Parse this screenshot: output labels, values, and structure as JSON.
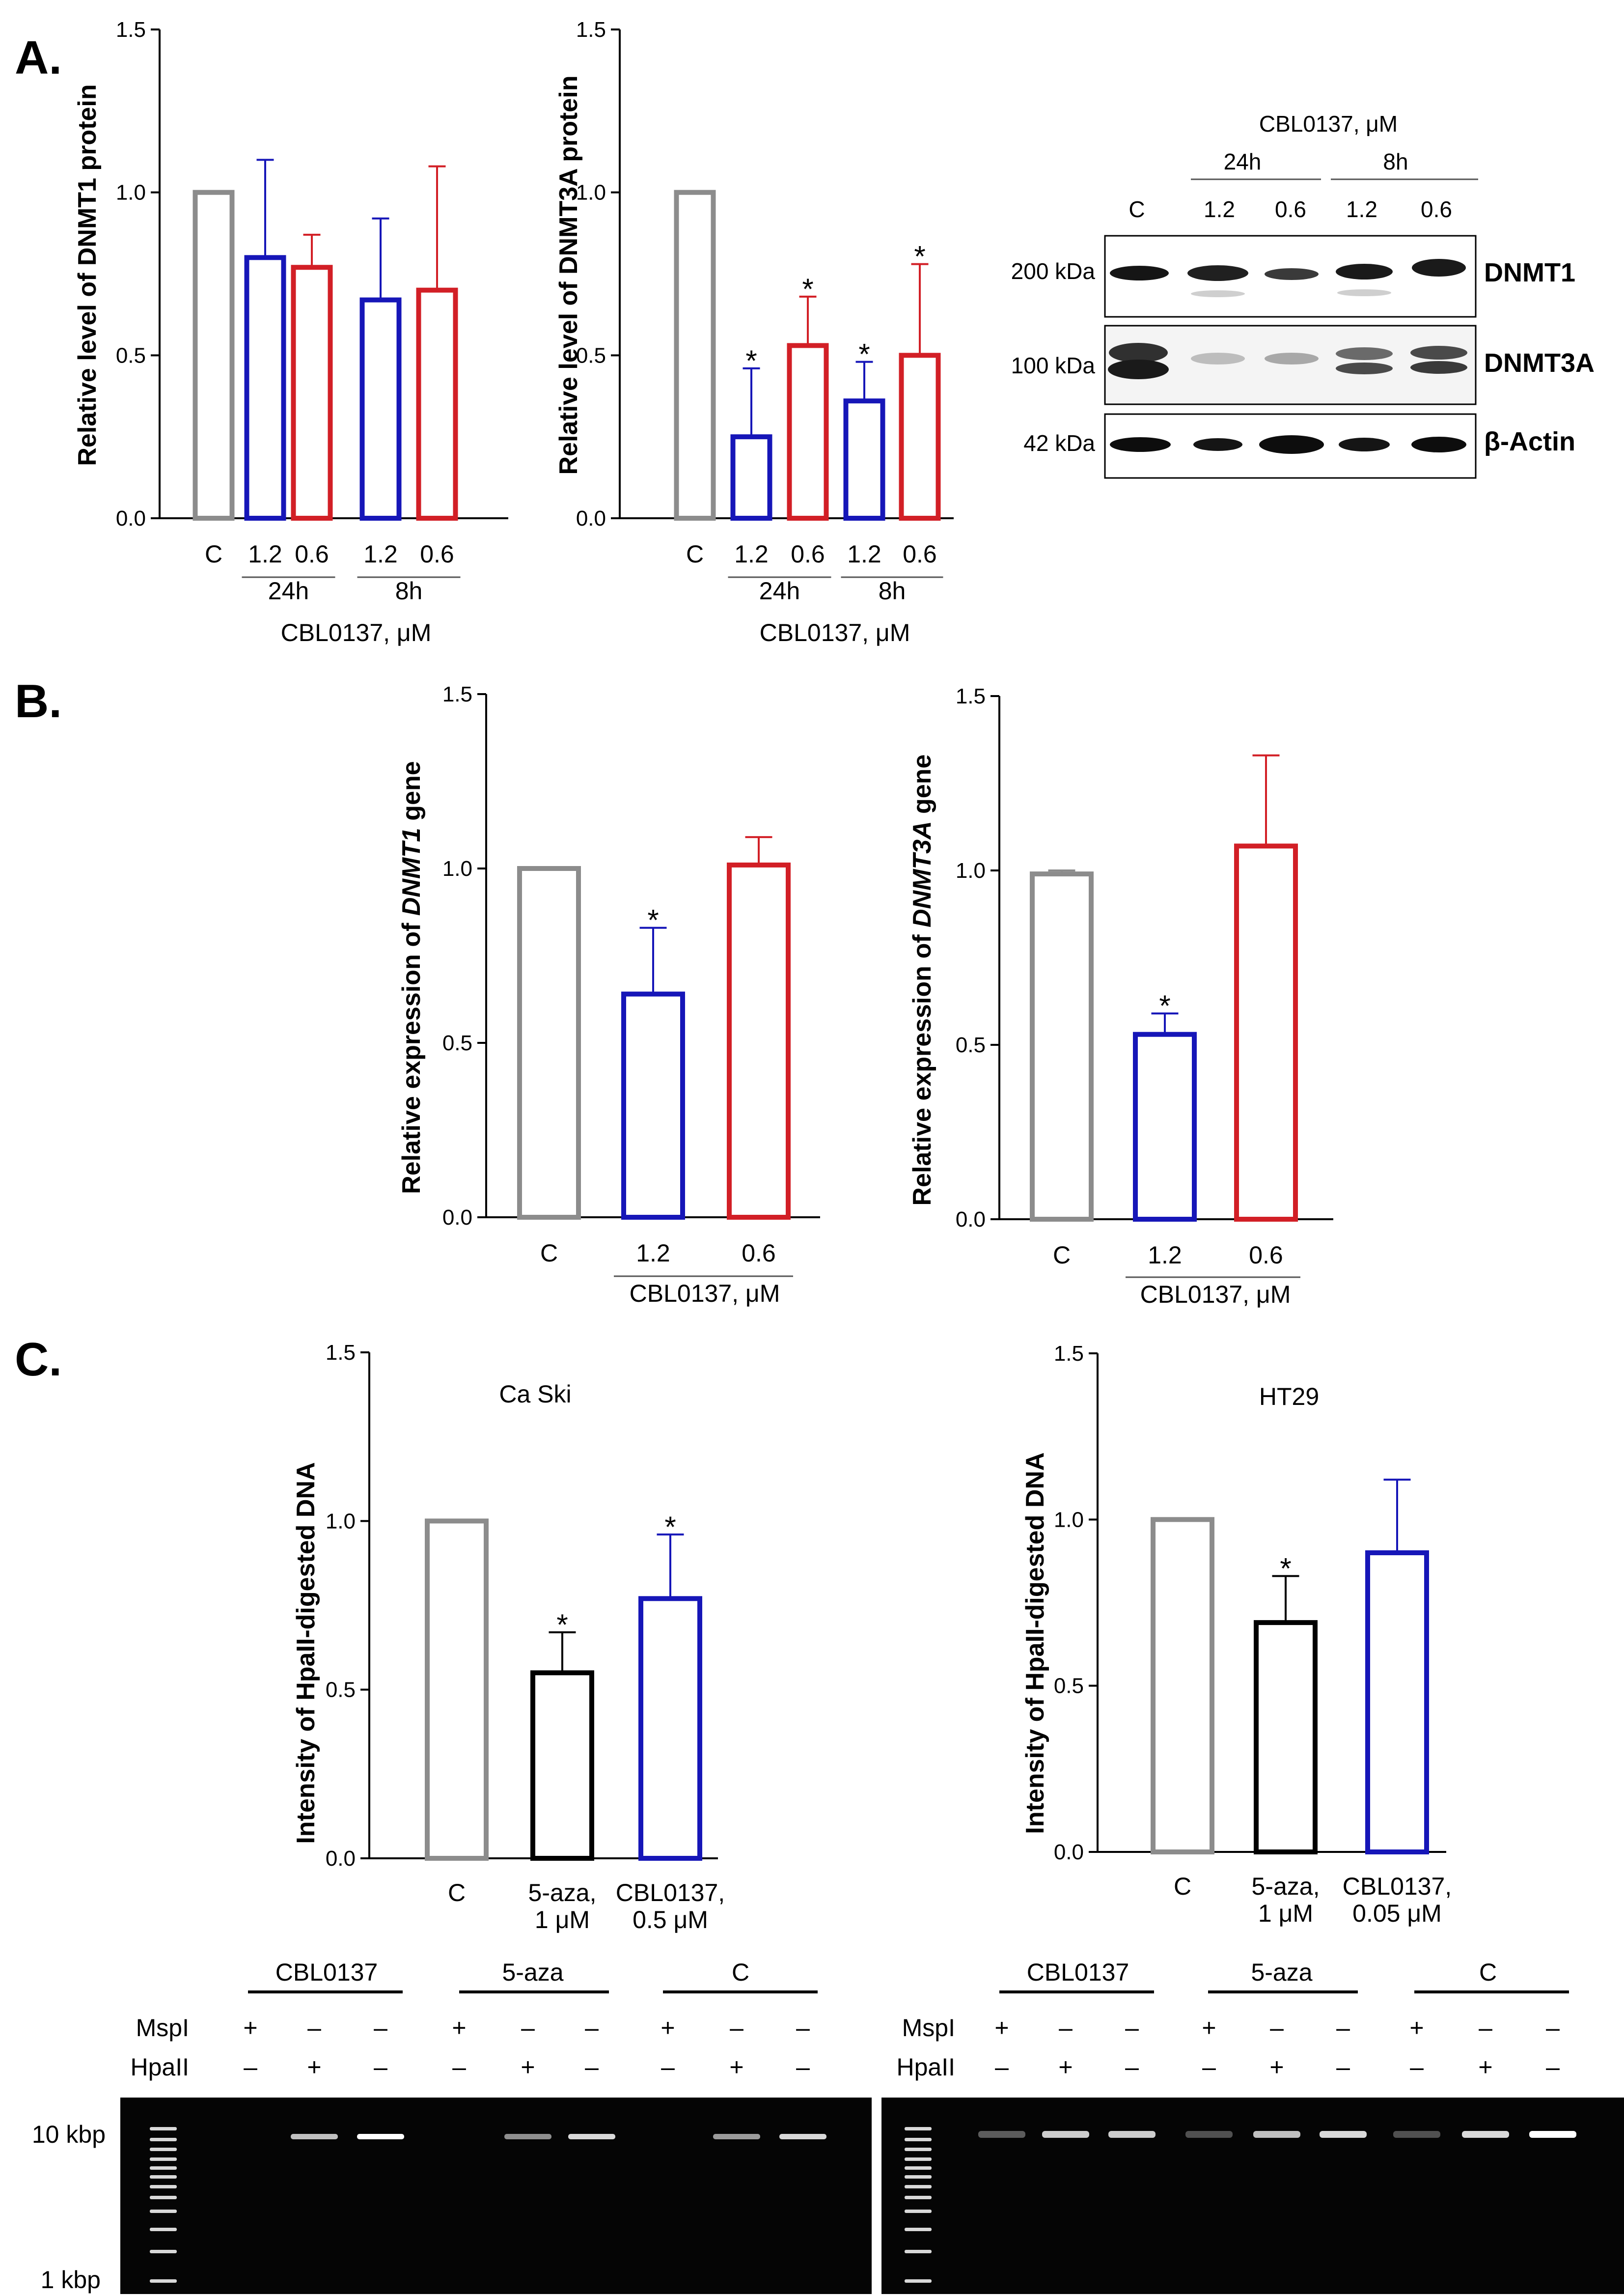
{
  "panels": {
    "a": "A.",
    "b": "B.",
    "c": "C."
  },
  "colors": {
    "control": "#8c8c8c",
    "blue": "#1616b8",
    "red": "#d21f26",
    "black": "#000000"
  },
  "chart_data": [
    {
      "id": "a1",
      "type": "bar",
      "ylabel": "Relative level of DNMT1 protein",
      "ylim": [
        0,
        1.5
      ],
      "yticks": [
        "0.0",
        "0.5",
        "1.0",
        "1.5"
      ],
      "categories": [
        "C",
        "1.2",
        "0.6",
        "1.2",
        "0.6"
      ],
      "values": [
        1.0,
        0.8,
        0.77,
        0.67,
        0.7
      ],
      "errors": [
        0,
        0.3,
        0.1,
        0.25,
        0.38
      ],
      "significant": [
        false,
        false,
        false,
        false,
        false
      ],
      "colors": [
        "control",
        "blue",
        "red",
        "blue",
        "red"
      ],
      "groups": [
        {
          "label": "24h",
          "from": 1,
          "to": 2
        },
        {
          "label": "8h",
          "from": 3,
          "to": 4
        }
      ],
      "xlabel": "CBL0137, μM"
    },
    {
      "id": "a2",
      "type": "bar",
      "ylabel": "Relative level of DNMT3A protein",
      "ylim": [
        0,
        1.5
      ],
      "yticks": [
        "0.0",
        "0.5",
        "1.0",
        "1.5"
      ],
      "categories": [
        "C",
        "1.2",
        "0.6",
        "1.2",
        "0.6"
      ],
      "values": [
        1.0,
        0.25,
        0.53,
        0.36,
        0.5
      ],
      "errors": [
        0,
        0.21,
        0.15,
        0.12,
        0.28
      ],
      "significant": [
        false,
        true,
        true,
        true,
        true
      ],
      "colors": [
        "control",
        "blue",
        "red",
        "blue",
        "red"
      ],
      "groups": [
        {
          "label": "24h",
          "from": 1,
          "to": 2
        },
        {
          "label": "8h",
          "from": 3,
          "to": 4
        }
      ],
      "xlabel": "CBL0137, μM"
    },
    {
      "id": "b1",
      "type": "bar",
      "ylabel": "Relative expression of DNMT1 gene",
      "ylabel_parts": [
        "Relative expression of ",
        "DNMT1",
        " gene"
      ],
      "ylim": [
        0,
        1.5
      ],
      "yticks": [
        "0.0",
        "0.5",
        "1.0",
        "1.5"
      ],
      "categories": [
        "C",
        "1.2",
        "0.6"
      ],
      "values": [
        1.0,
        0.64,
        1.01
      ],
      "errors": [
        0,
        0.19,
        0.08
      ],
      "significant": [
        false,
        true,
        false
      ],
      "colors": [
        "control",
        "blue",
        "red"
      ],
      "groups": [],
      "xlabel": "CBL0137, μM"
    },
    {
      "id": "b2",
      "type": "bar",
      "ylabel": "Relative expression of DNMT3A gene",
      "ylabel_parts": [
        "Relative expression of ",
        "DNMT3A",
        " gene"
      ],
      "ylim": [
        0,
        1.5
      ],
      "yticks": [
        "0.0",
        "0.5",
        "1.0",
        "1.5"
      ],
      "categories": [
        "C",
        "1.2",
        "0.6"
      ],
      "values": [
        0.99,
        0.53,
        1.07
      ],
      "errors": [
        0.01,
        0.06,
        0.26
      ],
      "significant": [
        false,
        true,
        false
      ],
      "colors": [
        "control",
        "blue",
        "red"
      ],
      "groups": [],
      "xlabel": "CBL0137, μM"
    },
    {
      "id": "c1",
      "type": "bar",
      "title": "Ca Ski",
      "ylabel": "Intensity of HpaII-digested DNA",
      "ylim": [
        0,
        1.5
      ],
      "yticks": [
        "0.0",
        "0.5",
        "1.0",
        "1.5"
      ],
      "categories": [
        [
          "C"
        ],
        [
          "5-aza,",
          "1 μM"
        ],
        [
          "CBL0137,",
          "0.5 μM"
        ]
      ],
      "values": [
        1.0,
        0.55,
        0.77
      ],
      "errors": [
        0,
        0.12,
        0.19
      ],
      "significant": [
        false,
        true,
        true
      ],
      "colors": [
        "control",
        "black",
        "blue"
      ],
      "groups": [],
      "xlabel": ""
    },
    {
      "id": "c2",
      "type": "bar",
      "title": "HT29",
      "ylabel": "Intensity of HpaII-digested DNA",
      "ylim": [
        0,
        1.5
      ],
      "yticks": [
        "0.0",
        "0.5",
        "1.0",
        "1.5"
      ],
      "categories": [
        [
          "C"
        ],
        [
          "5-aza,",
          "1 μM"
        ],
        [
          "CBL0137,",
          "0.05 μM"
        ]
      ],
      "values": [
        1.0,
        0.69,
        0.9
      ],
      "errors": [
        0,
        0.14,
        0.22
      ],
      "significant": [
        false,
        true,
        false
      ],
      "colors": [
        "control",
        "black",
        "blue"
      ],
      "groups": [],
      "xlabel": ""
    }
  ],
  "western_blot": {
    "header": "CBL0137, μM",
    "time_groups": [
      "24h",
      "8h"
    ],
    "lanes": [
      "C",
      "1.2",
      "0.6",
      "1.2",
      "0.6"
    ],
    "rows": [
      {
        "marker": "200 kDa",
        "protein": "DNMT1"
      },
      {
        "marker": "100 kDa",
        "protein": "DNMT3A"
      },
      {
        "marker": "42 kDa",
        "protein": "β-Actin"
      }
    ]
  },
  "gels": {
    "groups": [
      "CBL0137",
      "5-aza",
      "C"
    ],
    "enzymes": [
      {
        "name": "MspI",
        "signs": [
          "+",
          "–",
          "–"
        ]
      },
      {
        "name": "HpaII",
        "signs": [
          "–",
          "+",
          "–"
        ]
      }
    ],
    "markers": [
      "10 kbp",
      "1 kbp"
    ]
  }
}
